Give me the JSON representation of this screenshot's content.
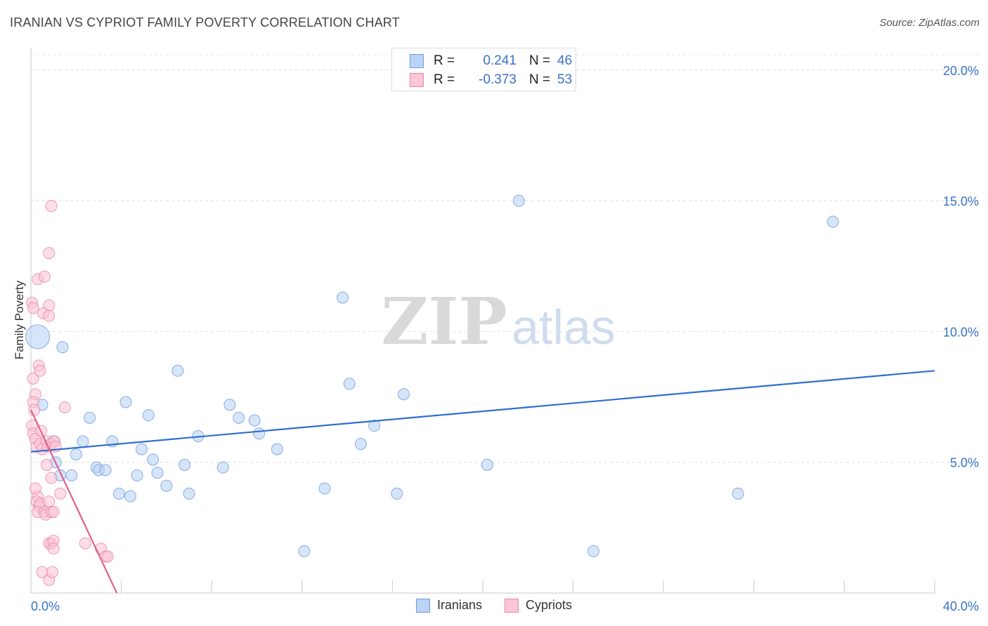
{
  "title": "IRANIAN VS CYPRIOT FAMILY POVERTY CORRELATION CHART",
  "source": "Source: ZipAtlas.com",
  "watermark": {
    "zip": "ZIP",
    "atlas": "atlas"
  },
  "stats": [
    {
      "r_label": "R =",
      "r_value": "0.241",
      "n_label": "N =",
      "n_value": "46"
    },
    {
      "r_label": "R =",
      "r_value": "-0.373",
      "n_label": "N =",
      "n_value": "53"
    }
  ],
  "legend": {
    "iranians": "Iranians",
    "cypriots": "Cypriots"
  },
  "colors": {
    "iranians_fill": "#bcd3f5",
    "iranians_stroke": "#6a9be0",
    "iranians_line": "#2f6fcf",
    "cypriots_fill": "#fbc6d6",
    "cypriots_stroke": "#e884a6",
    "cypriots_line": "#e0608e",
    "tick_label": "#3a72c8"
  },
  "chart_data": {
    "type": "scatter",
    "title": "IRANIAN VS CYPRIOT FAMILY POVERTY CORRELATION CHART",
    "xlabel": "",
    "ylabel": "Family Poverty",
    "xlim": [
      0,
      40
    ],
    "ylim": [
      0,
      20.8
    ],
    "x_tick_labels": [
      {
        "value": 0,
        "label": "0.0%"
      },
      {
        "value": 40,
        "label": "40.0%"
      }
    ],
    "y_tick_labels": [
      {
        "value": 5,
        "label": "5.0%"
      },
      {
        "value": 10,
        "label": "10.0%"
      },
      {
        "value": 15,
        "label": "15.0%"
      },
      {
        "value": 20,
        "label": "20.0%"
      }
    ],
    "x_minor_ticks": [
      4,
      8,
      12,
      16,
      20,
      24,
      28,
      32,
      36,
      40
    ],
    "grid": "horizontal-dashed",
    "legend_position": "bottom-center",
    "series": [
      {
        "name": "Iranians",
        "trendline": {
          "x": [
            0,
            40
          ],
          "y": [
            5.4,
            8.5
          ]
        },
        "points": [
          {
            "x": 0.3,
            "y": 9.8,
            "big": true
          },
          {
            "x": 0.5,
            "y": 7.2
          },
          {
            "x": 1.4,
            "y": 9.4
          },
          {
            "x": 1.0,
            "y": 5.8
          },
          {
            "x": 1.1,
            "y": 5.0
          },
          {
            "x": 1.3,
            "y": 4.5
          },
          {
            "x": 1.8,
            "y": 4.5
          },
          {
            "x": 2.0,
            "y": 5.3
          },
          {
            "x": 2.3,
            "y": 5.8
          },
          {
            "x": 2.6,
            "y": 6.7
          },
          {
            "x": 2.9,
            "y": 4.8
          },
          {
            "x": 3.0,
            "y": 4.7
          },
          {
            "x": 3.3,
            "y": 4.7
          },
          {
            "x": 3.6,
            "y": 5.8
          },
          {
            "x": 3.9,
            "y": 3.8
          },
          {
            "x": 4.2,
            "y": 7.3
          },
          {
            "x": 4.4,
            "y": 3.7
          },
          {
            "x": 4.7,
            "y": 4.5
          },
          {
            "x": 4.9,
            "y": 5.5
          },
          {
            "x": 5.2,
            "y": 6.8
          },
          {
            "x": 5.4,
            "y": 5.1
          },
          {
            "x": 5.6,
            "y": 4.6
          },
          {
            "x": 6.0,
            "y": 4.1
          },
          {
            "x": 6.5,
            "y": 8.5
          },
          {
            "x": 6.8,
            "y": 4.9
          },
          {
            "x": 7.0,
            "y": 3.8
          },
          {
            "x": 7.4,
            "y": 6.0
          },
          {
            "x": 8.5,
            "y": 4.8
          },
          {
            "x": 8.8,
            "y": 7.2
          },
          {
            "x": 9.2,
            "y": 6.7
          },
          {
            "x": 9.9,
            "y": 6.6
          },
          {
            "x": 10.1,
            "y": 6.1
          },
          {
            "x": 10.9,
            "y": 5.5
          },
          {
            "x": 12.1,
            "y": 1.6
          },
          {
            "x": 13.0,
            "y": 4.0
          },
          {
            "x": 13.8,
            "y": 11.3
          },
          {
            "x": 14.1,
            "y": 8.0
          },
          {
            "x": 14.6,
            "y": 5.7
          },
          {
            "x": 15.2,
            "y": 6.4
          },
          {
            "x": 16.2,
            "y": 3.8
          },
          {
            "x": 16.5,
            "y": 7.6
          },
          {
            "x": 20.2,
            "y": 4.9
          },
          {
            "x": 21.6,
            "y": 15.0
          },
          {
            "x": 24.9,
            "y": 1.6
          },
          {
            "x": 31.3,
            "y": 3.8
          },
          {
            "x": 35.5,
            "y": 14.2
          }
        ]
      },
      {
        "name": "Cypriots",
        "trendline": {
          "x": [
            0,
            3.8
          ],
          "y": [
            7.0,
            0.0
          ]
        },
        "points": [
          {
            "x": 0.05,
            "y": 11.1
          },
          {
            "x": 0.1,
            "y": 10.9
          },
          {
            "x": 0.3,
            "y": 12.0
          },
          {
            "x": 0.6,
            "y": 12.1
          },
          {
            "x": 0.8,
            "y": 13.0
          },
          {
            "x": 0.9,
            "y": 14.8
          },
          {
            "x": 0.8,
            "y": 11.0
          },
          {
            "x": 0.55,
            "y": 10.7
          },
          {
            "x": 0.8,
            "y": 10.6
          },
          {
            "x": 0.1,
            "y": 8.2
          },
          {
            "x": 0.35,
            "y": 8.7
          },
          {
            "x": 0.4,
            "y": 8.5
          },
          {
            "x": 0.2,
            "y": 7.6
          },
          {
            "x": 0.1,
            "y": 7.3
          },
          {
            "x": 0.15,
            "y": 7.0
          },
          {
            "x": 0.05,
            "y": 6.4
          },
          {
            "x": 0.1,
            "y": 6.1
          },
          {
            "x": 0.2,
            "y": 5.9
          },
          {
            "x": 0.25,
            "y": 5.6
          },
          {
            "x": 0.4,
            "y": 5.7
          },
          {
            "x": 0.5,
            "y": 5.5
          },
          {
            "x": 0.7,
            "y": 5.8
          },
          {
            "x": 0.75,
            "y": 5.6
          },
          {
            "x": 0.9,
            "y": 5.7
          },
          {
            "x": 1.05,
            "y": 5.8
          },
          {
            "x": 1.1,
            "y": 5.6
          },
          {
            "x": 1.5,
            "y": 7.1
          },
          {
            "x": 0.7,
            "y": 4.9
          },
          {
            "x": 0.9,
            "y": 4.4
          },
          {
            "x": 0.3,
            "y": 3.7
          },
          {
            "x": 0.25,
            "y": 3.5
          },
          {
            "x": 0.35,
            "y": 3.3
          },
          {
            "x": 0.4,
            "y": 3.4
          },
          {
            "x": 0.3,
            "y": 3.1
          },
          {
            "x": 0.6,
            "y": 3.1
          },
          {
            "x": 0.65,
            "y": 3.0
          },
          {
            "x": 0.8,
            "y": 3.5
          },
          {
            "x": 0.9,
            "y": 3.1
          },
          {
            "x": 1.0,
            "y": 3.1
          },
          {
            "x": 1.3,
            "y": 3.8
          },
          {
            "x": 0.8,
            "y": 1.9
          },
          {
            "x": 0.9,
            "y": 1.9
          },
          {
            "x": 1.0,
            "y": 2.0
          },
          {
            "x": 1.0,
            "y": 1.7
          },
          {
            "x": 0.5,
            "y": 0.8
          },
          {
            "x": 0.8,
            "y": 0.5
          },
          {
            "x": 0.95,
            "y": 0.8
          },
          {
            "x": 3.1,
            "y": 1.7
          },
          {
            "x": 3.3,
            "y": 1.4
          },
          {
            "x": 3.4,
            "y": 1.4
          },
          {
            "x": 2.4,
            "y": 1.9
          },
          {
            "x": 0.2,
            "y": 4.0
          },
          {
            "x": 0.45,
            "y": 6.2
          }
        ]
      }
    ]
  }
}
